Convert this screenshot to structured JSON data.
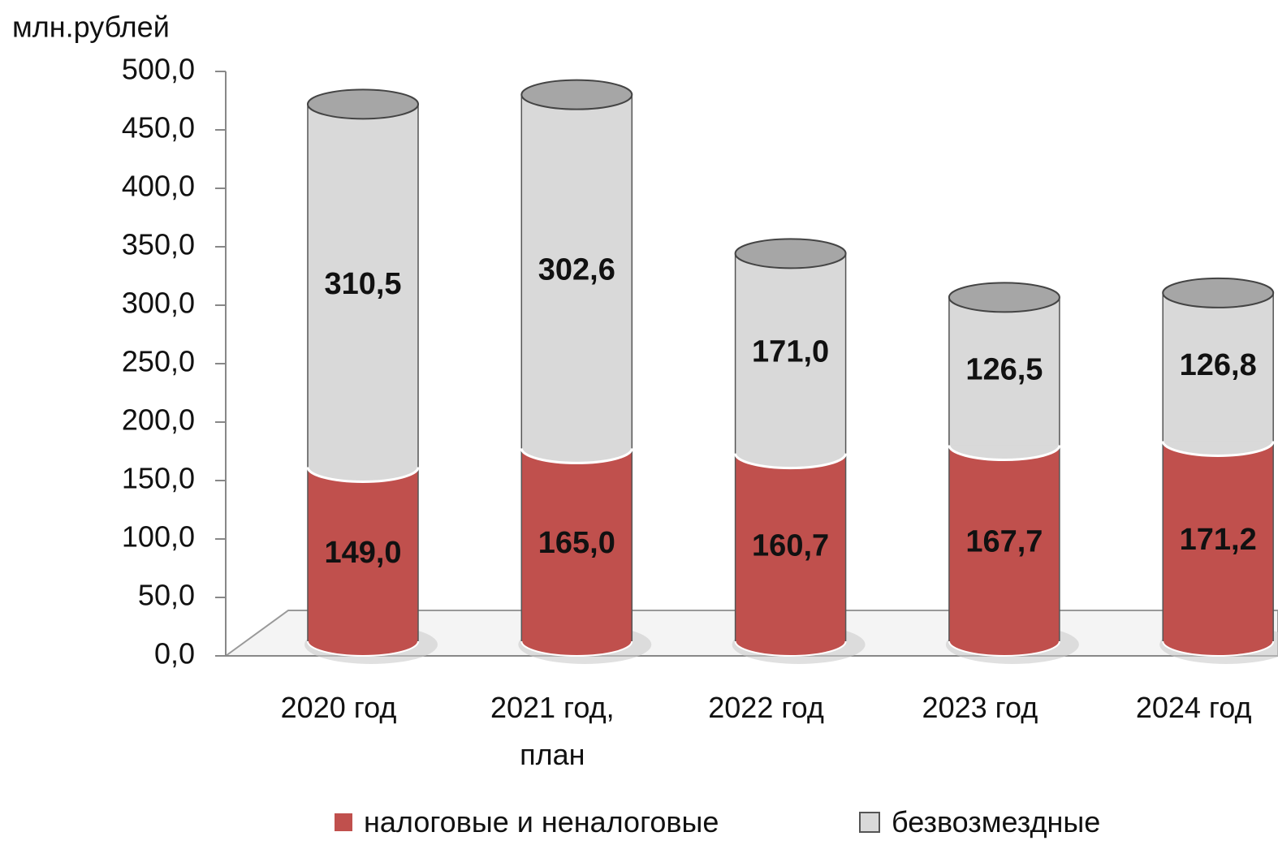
{
  "chart_data": {
    "type": "bar",
    "stacked": true,
    "y_label": "млн.рублей",
    "categories": [
      "2020 год",
      "2021 год, план",
      "2022 год",
      "2023 год",
      "2024 год"
    ],
    "series": [
      {
        "name": "налоговые и неналоговые",
        "color": "#c0504d",
        "values": [
          149.0,
          165.0,
          160.7,
          167.7,
          171.2
        ],
        "value_labels": [
          "149,0",
          "165,0",
          "160,7",
          "167,7",
          "171,2"
        ]
      },
      {
        "name": "безвозмездные",
        "color": "#d9d9d9",
        "values": [
          310.5,
          302.6,
          171.0,
          126.5,
          126.8
        ],
        "value_labels": [
          "310,5",
          "302,6",
          "171,0",
          "126,5",
          "126,8"
        ]
      }
    ],
    "ylim": [
      0,
      500
    ],
    "yticks": [
      {
        "value": 0,
        "label": "0,0"
      },
      {
        "value": 50,
        "label": "50,0"
      },
      {
        "value": 100,
        "label": "100,0"
      },
      {
        "value": 150,
        "label": "150,0"
      },
      {
        "value": 200,
        "label": "200,0"
      },
      {
        "value": 250,
        "label": "250,0"
      },
      {
        "value": 300,
        "label": "300,0"
      },
      {
        "value": 350,
        "label": "350,0"
      },
      {
        "value": 400,
        "label": "400,0"
      },
      {
        "value": 450,
        "label": "450,0"
      },
      {
        "value": 500,
        "label": "500,0"
      }
    ],
    "legend": "bottom"
  }
}
